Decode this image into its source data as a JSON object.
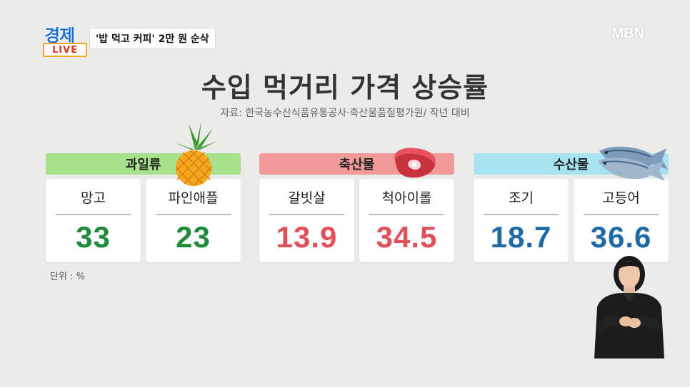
{
  "badge": {
    "word": "경제",
    "live": "LIVE",
    "headline": "'밥 먹고 커피' 2만 원 순삭"
  },
  "channel_logo": "MBN",
  "title": "수입 먹거리 가격 상승률",
  "source": "자료: 한국농수산식품유통공사·축산물품질평가원/ 작년 대비",
  "unit": "단위 : %",
  "groups": [
    {
      "name": "과일류",
      "header_color": "#a8e18b",
      "value_color": "#1f8a3a",
      "icon": "pineapple-icon",
      "items": [
        {
          "label": "망고",
          "value": "33"
        },
        {
          "label": "파인애플",
          "value": "23"
        }
      ]
    },
    {
      "name": "축산물",
      "header_color": "#f29a9a",
      "value_color": "#e0505a",
      "icon": "meat-icon",
      "items": [
        {
          "label": "갈빗살",
          "value": "13.9"
        },
        {
          "label": "척아이롤",
          "value": "34.5"
        }
      ]
    },
    {
      "name": "수산물",
      "header_color": "#a6e4f2",
      "value_color": "#1f6aa5",
      "icon": "fish-icon",
      "items": [
        {
          "label": "조기",
          "value": "18.7"
        },
        {
          "label": "고등어",
          "value": "36.6"
        }
      ]
    }
  ]
}
